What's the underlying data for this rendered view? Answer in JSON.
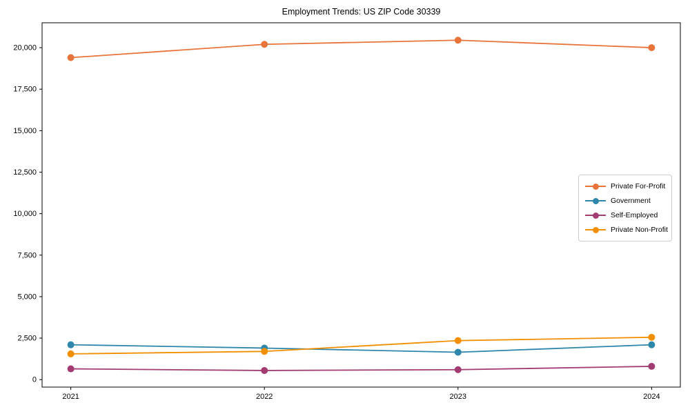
{
  "chart_data": {
    "type": "line",
    "title": "Employment Trends: US ZIP Code 30339",
    "categories": [
      "2021",
      "2022",
      "2023",
      "2024"
    ],
    "series": [
      {
        "name": "Private For-Profit",
        "color": "#E8743B",
        "values": [
          19400,
          20200,
          20450,
          20000
        ]
      },
      {
        "name": "Government",
        "color": "#2E86AB",
        "values": [
          2100,
          1900,
          1650,
          2100
        ]
      },
      {
        "name": "Self-Employed",
        "color": "#A23B72",
        "values": [
          650,
          550,
          600,
          800
        ]
      },
      {
        "name": "Private Non-Profit",
        "color": "#F18F01",
        "values": [
          1550,
          1700,
          2350,
          2550
        ]
      }
    ],
    "xlabel": "",
    "ylabel": "",
    "ylim": [
      -450,
      21500
    ],
    "yticks": [
      0,
      2500,
      5000,
      7500,
      10000,
      12500,
      15000,
      17500,
      20000
    ],
    "ytick_labels": [
      "0",
      "2,500",
      "5,000",
      "7,500",
      "10,000",
      "12,500",
      "15,000",
      "17,500",
      "20,000"
    ],
    "grid": false,
    "legend_position": "center-right"
  }
}
